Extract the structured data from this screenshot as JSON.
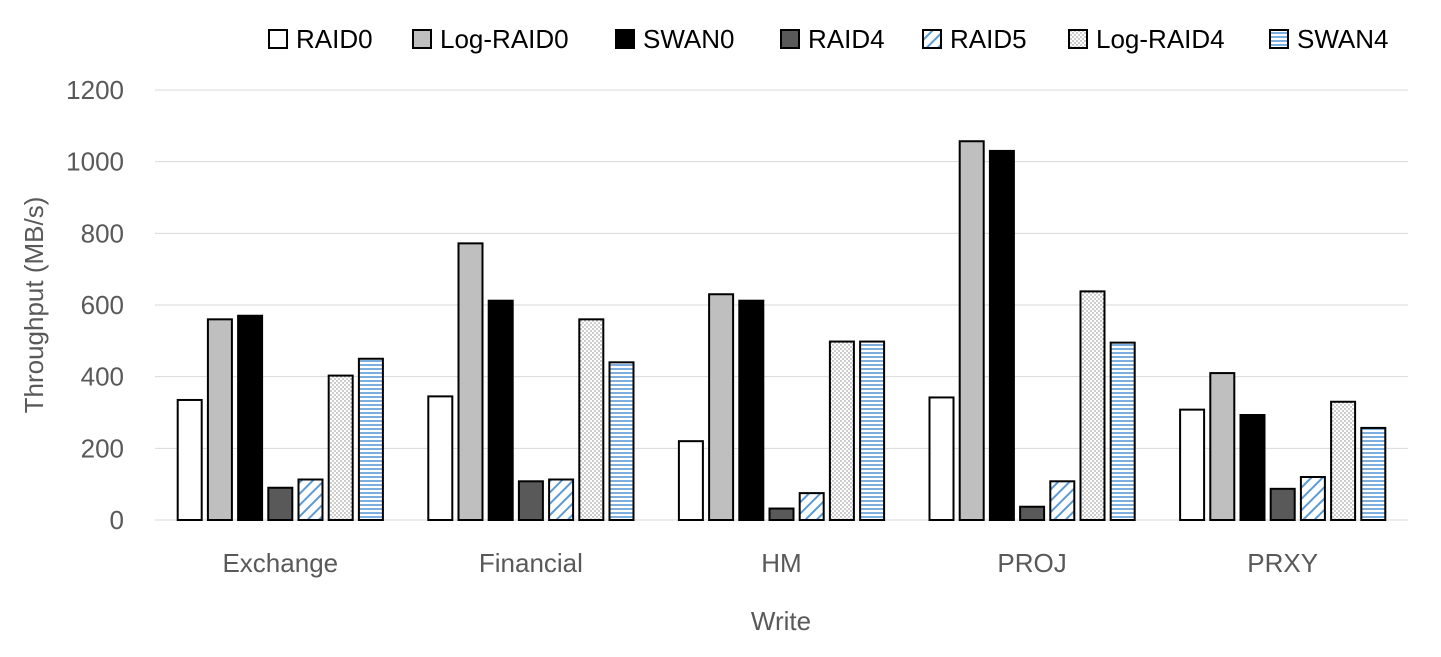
{
  "chart_data": {
    "type": "bar",
    "title": "",
    "xlabel": "Write",
    "ylabel": "Throughput (MB/s)",
    "ylim": [
      0,
      1200
    ],
    "yticks": [
      0,
      200,
      400,
      600,
      800,
      1000,
      1200
    ],
    "grid": true,
    "legend_position": "top",
    "categories": [
      "Exchange",
      "Financial",
      "HM",
      "PROJ",
      "PRXY"
    ],
    "series": [
      {
        "name": "RAID0",
        "values": [
          335,
          345,
          220,
          342,
          308
        ],
        "fill": "#ffffff",
        "pattern": "solid"
      },
      {
        "name": "Log-RAID0",
        "values": [
          560,
          772,
          630,
          1057,
          410
        ],
        "fill": "#bfbfbf",
        "pattern": "solid"
      },
      {
        "name": "SWAN0",
        "values": [
          570,
          612,
          612,
          1030,
          293
        ],
        "fill": "#000000",
        "pattern": "solid"
      },
      {
        "name": "RAID4",
        "values": [
          90,
          108,
          32,
          37,
          87
        ],
        "fill": "#595959",
        "pattern": "solid"
      },
      {
        "name": "RAID5",
        "values": [
          113,
          113,
          75,
          108,
          120
        ],
        "fill": "#5b9bd5",
        "pattern": "diagonal"
      },
      {
        "name": "Log-RAID4",
        "values": [
          403,
          560,
          498,
          638,
          330
        ],
        "fill": "#7f7f7f",
        "pattern": "dots"
      },
      {
        "name": "SWAN4",
        "values": [
          450,
          440,
          498,
          495,
          257
        ],
        "fill": "#5b9bd5",
        "pattern": "horizontal"
      }
    ]
  }
}
